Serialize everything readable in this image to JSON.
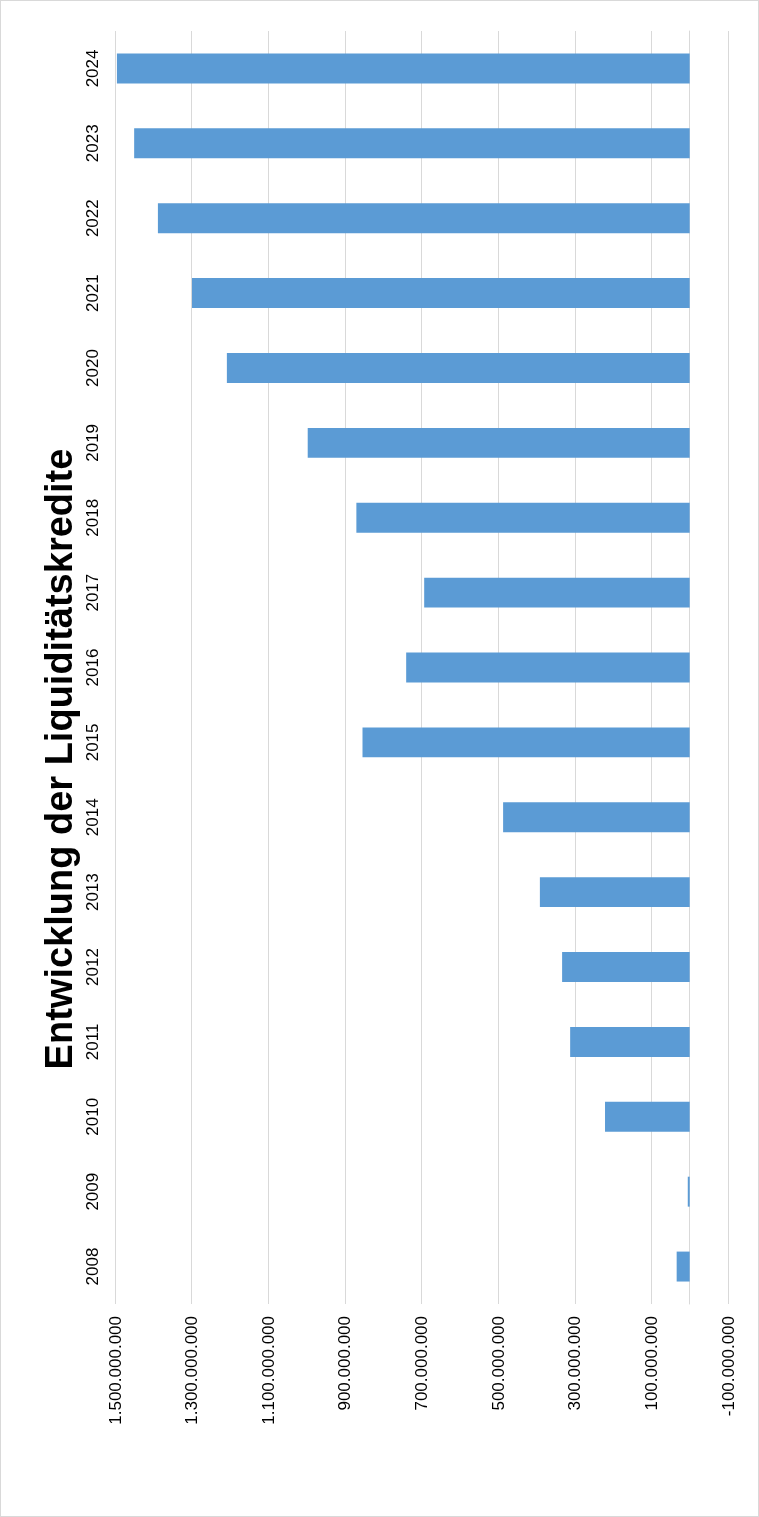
{
  "chart_data": {
    "type": "bar",
    "title": "Entwicklung der Liquiditätskredite",
    "orientation": "horizontal",
    "categories": [
      "2024",
      "2023",
      "2022",
      "2021",
      "2020",
      "2019",
      "2018",
      "2017",
      "2016",
      "2015",
      "2014",
      "2013",
      "2012",
      "2011",
      "2010",
      "2009",
      "2008"
    ],
    "values": [
      1495000000,
      1450000000,
      1388000000,
      1299000000,
      1208000000,
      997000000,
      870000000,
      693000000,
      740000000,
      854000000,
      487000000,
      391000000,
      333000000,
      312000000,
      221000000,
      5000000,
      34000000
    ],
    "color": "#5b9bd5",
    "xlim": [
      1500000000,
      -100000000
    ],
    "xticks": [
      {
        "value": 1500000000,
        "label": "1.500.000.000"
      },
      {
        "value": 1300000000,
        "label": "1.300.000.000"
      },
      {
        "value": 1100000000,
        "label": "1.100.000.000"
      },
      {
        "value": 900000000,
        "label": "900.000.000"
      },
      {
        "value": 700000000,
        "label": "700.000.000"
      },
      {
        "value": 500000000,
        "label": "500.000.000"
      },
      {
        "value": 300000000,
        "label": "300.000.000"
      },
      {
        "value": 100000000,
        "label": "100.000.000"
      },
      {
        "value": -100000000,
        "label": "-100.000.000"
      }
    ],
    "grid": "x"
  }
}
